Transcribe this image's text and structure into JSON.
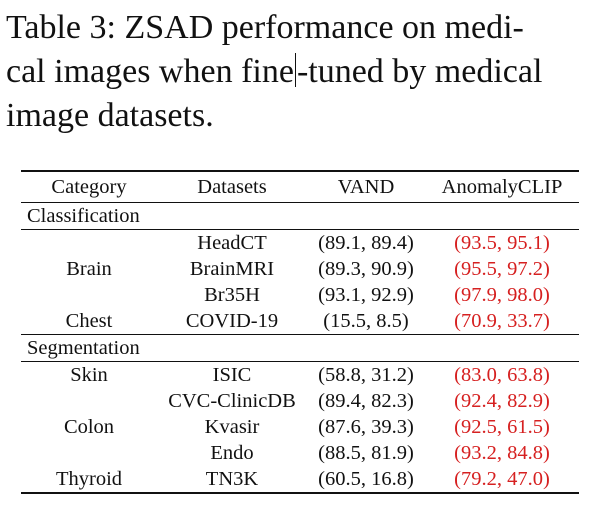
{
  "caption": {
    "line1": "Table 3:  ZSAD performance on medi-",
    "line2_a": "cal images when fine",
    "line2_b": "-tuned by medical",
    "line3": "image datasets."
  },
  "table": {
    "headers": [
      "Category",
      "Datasets",
      "VAND",
      "AnomalyCLIP"
    ],
    "sections": [
      {
        "label": "Classification",
        "rows": [
          {
            "category": "",
            "dataset": "HeadCT",
            "vand": "(89.1, 89.4)",
            "anomalyclip": "(93.5, 95.1)"
          },
          {
            "category": "Brain",
            "dataset": "BrainMRI",
            "vand": "(89.3, 90.9)",
            "anomalyclip": "(95.5, 97.2)"
          },
          {
            "category": "",
            "dataset": "Br35H",
            "vand": "(93.1, 92.9)",
            "anomalyclip": "(97.9, 98.0)"
          },
          {
            "category": "Chest",
            "dataset": "COVID-19",
            "vand": "(15.5, 8.5)",
            "anomalyclip": "(70.9, 33.7)"
          }
        ]
      },
      {
        "label": "Segmentation",
        "rows": [
          {
            "category": "Skin",
            "dataset": "ISIC",
            "vand": "(58.8, 31.2)",
            "anomalyclip": "(83.0, 63.8)"
          },
          {
            "category": "",
            "dataset": "CVC-ClinicDB",
            "vand": "(89.4, 82.3)",
            "anomalyclip": "(92.4, 82.9)"
          },
          {
            "category": "Colon",
            "dataset": "Kvasir",
            "vand": "(87.6, 39.3)",
            "anomalyclip": "(92.5, 61.5)"
          },
          {
            "category": "",
            "dataset": "Endo",
            "vand": "(88.5, 81.9)",
            "anomalyclip": "(93.2, 84.8)"
          },
          {
            "category": "Thyroid",
            "dataset": "TN3K",
            "vand": "(60.5, 16.8)",
            "anomalyclip": "(79.2, 47.0)"
          }
        ]
      }
    ],
    "highlight_color": "#d62020"
  }
}
